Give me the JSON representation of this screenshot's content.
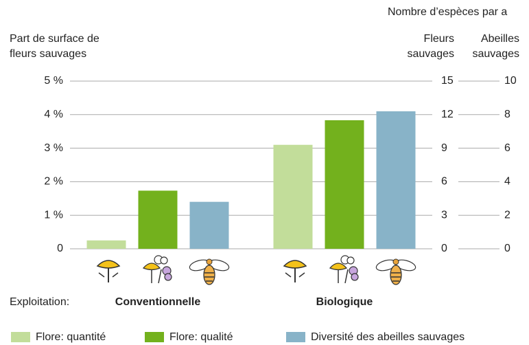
{
  "chart_data": {
    "type": "bar",
    "header": "Nombre d’espèces par a",
    "y_title": [
      "Part de surface de",
      "fleurs sauvages"
    ],
    "y2_title": [
      "Fleurs",
      "sauvages"
    ],
    "y3_title": [
      "Abeilles",
      "sauvages"
    ],
    "x_label": "Exploitation:",
    "categories": [
      "Conventionnelle",
      "Biologique"
    ],
    "series": [
      {
        "name": "Flore: quantité",
        "color": "#c2dd9a",
        "values": [
          0.25,
          3.1
        ]
      },
      {
        "name": "Flore: qualité",
        "color": "#73b11d",
        "values": [
          5.2,
          11.5
        ],
        "axis": "y2"
      },
      {
        "name": "Diversité des abeilles sauvages",
        "color": "#88b3c8",
        "values": [
          2.8,
          8.2
        ],
        "axis": "y3"
      }
    ],
    "ylim": [
      0,
      5
    ],
    "yticks": [
      0,
      {
        "value": 1,
        "label": "1 %"
      },
      {
        "value": 2,
        "label": "2 %"
      },
      {
        "value": 3,
        "label": "3 %"
      },
      {
        "value": 4,
        "label": "4 %"
      },
      {
        "value": 5,
        "label": "5 %"
      }
    ],
    "y2lim": [
      0,
      15
    ],
    "y2ticks": [
      0,
      3,
      6,
      9,
      12,
      15
    ],
    "y3lim": [
      0,
      10
    ],
    "y3ticks": [
      0,
      2,
      4,
      6,
      8,
      10
    ],
    "grid": true
  }
}
